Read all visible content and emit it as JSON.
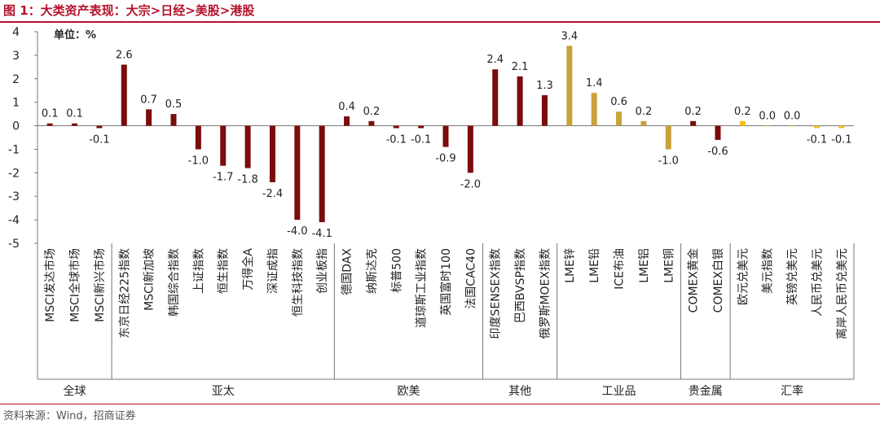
{
  "header": {
    "title": "图 1：大类资产表现：大宗>日经>美股>港股"
  },
  "footer": {
    "source": "资料来源：Wind，招商证券"
  },
  "chart_data": {
    "type": "bar",
    "unit_label": "单位：%",
    "ylim": [
      -5,
      4
    ],
    "yticks": [
      4,
      3,
      2,
      1,
      0,
      -1,
      -2,
      -3,
      -4,
      -5
    ],
    "ytick_labels": [
      "4",
      "3",
      "2",
      "1",
      "0",
      "-1",
      "-2",
      "-3",
      "-4",
      "-5"
    ],
    "grid": false,
    "colors": {
      "default": "#7a0c0c",
      "industrial": "#c9a23a",
      "fx": "#f0c419"
    },
    "categories": [
      "MSCI发达市场",
      "MSCI全球市场",
      "MSCI新兴市场",
      "东京日经225指数",
      "MSCI新加坡",
      "韩国综合指数",
      "上证指数",
      "恒生指数",
      "万得全A",
      "深证成指",
      "恒生科技指数",
      "创业板指",
      "德国DAX",
      "纳斯达克",
      "标普500",
      "道琼斯工业指数",
      "英国富时100",
      "法国CAC40",
      "印度SENSEX指数",
      "巴西BVSP指数",
      "俄罗斯MOEX指数",
      "LME锌",
      "LME铅",
      "ICE布油",
      "LME铝",
      "LME铜",
      "COMEX黄金",
      "COMEX白银",
      "欧元兑美元",
      "美元指数",
      "英镑兑美元",
      "人民币兑美元",
      "离岸人民币兑美元"
    ],
    "values": [
      0.1,
      0.1,
      -0.1,
      2.6,
      0.7,
      0.5,
      -1.0,
      -1.7,
      -1.8,
      -2.4,
      -4.0,
      -4.1,
      0.4,
      0.2,
      -0.1,
      -0.1,
      -0.9,
      -2.0,
      2.4,
      2.1,
      1.3,
      3.4,
      1.4,
      0.6,
      0.2,
      -1.0,
      0.2,
      -0.6,
      0.2,
      0.0,
      0.0,
      -0.1,
      -0.1
    ],
    "value_labels": [
      "0.1",
      "0.1",
      "-0.1",
      "2.6",
      "0.7",
      "0.5",
      "-1.0",
      "-1.7",
      "-1.8",
      "-2.4",
      "-4.0",
      "-4.1",
      "0.4",
      "0.2",
      "-0.1",
      "-0.1",
      "-0.9",
      "-2.0",
      "2.4",
      "2.1",
      "1.3",
      "3.4",
      "1.4",
      "0.6",
      "0.2",
      "-1.0",
      "0.2",
      "-0.6",
      "0.2",
      "0.0",
      "0.0",
      "-0.1",
      "-0.1"
    ],
    "color_keys": [
      "default",
      "default",
      "default",
      "default",
      "default",
      "default",
      "default",
      "default",
      "default",
      "default",
      "default",
      "default",
      "default",
      "default",
      "default",
      "default",
      "default",
      "default",
      "default",
      "default",
      "default",
      "industrial",
      "industrial",
      "industrial",
      "industrial",
      "industrial",
      "default",
      "default",
      "fx",
      "fx",
      "fx",
      "fx",
      "fx"
    ],
    "groups": [
      {
        "label": "全球",
        "count": 3
      },
      {
        "label": "亚太",
        "count": 9
      },
      {
        "label": "欧美",
        "count": 6
      },
      {
        "label": "其他",
        "count": 3
      },
      {
        "label": "工业品",
        "count": 5
      },
      {
        "label": "贵金属",
        "count": 2
      },
      {
        "label": "汇率",
        "count": 5
      }
    ]
  }
}
